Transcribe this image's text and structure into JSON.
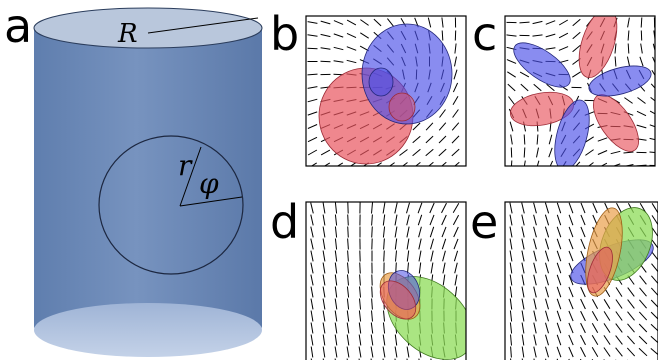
{
  "panels": [
    {
      "label": "a"
    },
    {
      "label": "b"
    },
    {
      "label": "c"
    },
    {
      "label": "d"
    },
    {
      "label": "e"
    }
  ],
  "cylinder": {
    "outer_radius_symbol": "R",
    "inner_radius_symbol": "r",
    "angle_symbol": "φ",
    "fill_color": "#6d8ab8",
    "top_color": "#b9c7dc",
    "bottom_color": "#a9bcd8"
  },
  "lobe_colors": {
    "red": "#e8545e",
    "blue": "#4a4ee8",
    "green": "#8edc58",
    "orange": "#e9a04a"
  }
}
